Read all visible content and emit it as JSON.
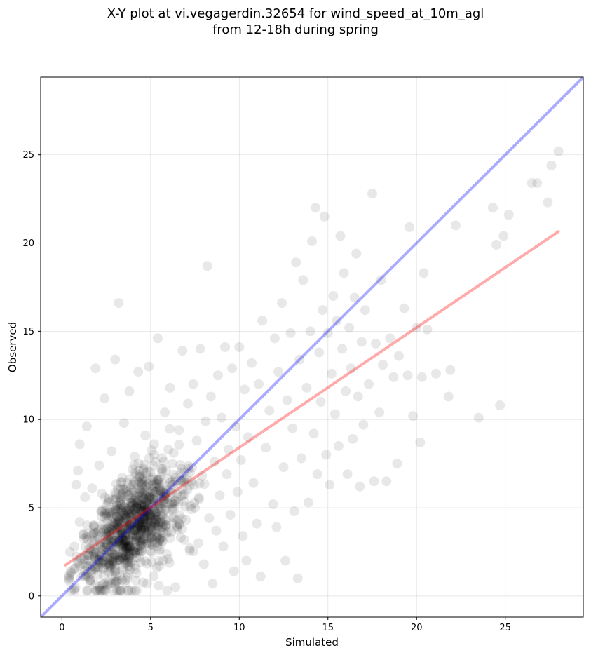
{
  "chart_data": {
    "type": "scatter",
    "title_line1": "X-Y plot at vi.vegagerdin.32654 for wind_speed_at_10m_agl",
    "title_line2": "from 12-18h during spring",
    "xlabel": "Simulated",
    "ylabel": "Observed",
    "xlim": [
      -1.2,
      29.4
    ],
    "ylim": [
      -1.2,
      29.4
    ],
    "xticks": [
      0,
      5,
      10,
      15,
      20,
      25
    ],
    "yticks": [
      0,
      5,
      10,
      15,
      20,
      25
    ],
    "grid": true,
    "reference_line": {
      "slope": 1,
      "intercept": 0,
      "color": "#0000ff",
      "opacity": 0.33
    },
    "fit_line": {
      "x": [
        0.2,
        28.0
      ],
      "y": [
        1.75,
        20.65
      ],
      "color": "#ff0000",
      "opacity": 0.33
    },
    "point_color": "#000000",
    "point_opacity": 0.09,
    "series": [
      {
        "points": [
          [
            0.5,
            1.4
          ],
          [
            0.7,
            2.8
          ],
          [
            0.8,
            6.3
          ],
          [
            0.9,
            7.1
          ],
          [
            1.0,
            4.2
          ],
          [
            1.0,
            8.6
          ],
          [
            1.1,
            1.1
          ],
          [
            1.2,
            3.5
          ],
          [
            1.3,
            5.6
          ],
          [
            1.4,
            9.6
          ],
          [
            1.5,
            2.3
          ],
          [
            1.6,
            0.8
          ],
          [
            1.7,
            6.1
          ],
          [
            1.8,
            3.9
          ],
          [
            1.9,
            12.9
          ],
          [
            2.0,
            1.6
          ],
          [
            2.1,
            7.4
          ],
          [
            2.2,
            4.8
          ],
          [
            2.3,
            2.6
          ],
          [
            2.4,
            11.2
          ],
          [
            2.5,
            0.6
          ],
          [
            2.6,
            5.3
          ],
          [
            2.7,
            3.1
          ],
          [
            2.8,
            8.2
          ],
          [
            2.9,
            1.9
          ],
          [
            3.0,
            13.4
          ],
          [
            3.1,
            4.5
          ],
          [
            3.2,
            16.6
          ],
          [
            3.3,
            2.2
          ],
          [
            3.4,
            6.7
          ],
          [
            3.5,
            9.8
          ],
          [
            3.6,
            0.9
          ],
          [
            3.7,
            3.8
          ],
          [
            3.8,
            11.6
          ],
          [
            3.9,
            5.1
          ],
          [
            4.0,
            2.4
          ],
          [
            4.1,
            7.9
          ],
          [
            4.2,
            1.3
          ],
          [
            4.3,
            12.7
          ],
          [
            4.4,
            4.0
          ],
          [
            4.5,
            6.2
          ],
          [
            4.6,
            3.2
          ],
          [
            4.7,
            9.1
          ],
          [
            4.8,
            0.7
          ],
          [
            4.9,
            13.0
          ],
          [
            5.0,
            5.5
          ],
          [
            5.1,
            2.9
          ],
          [
            5.2,
            8.6
          ],
          [
            5.3,
            4.7
          ],
          [
            5.4,
            14.6
          ],
          [
            5.5,
            1.7
          ],
          [
            5.6,
            7.2
          ],
          [
            5.7,
            3.6
          ],
          [
            5.8,
            10.4
          ],
          [
            5.9,
            6.0
          ],
          [
            6.0,
            2.1
          ],
          [
            6.1,
            11.8
          ],
          [
            6.2,
            4.9
          ],
          [
            6.3,
            8.1
          ],
          [
            6.4,
            0.5
          ],
          [
            6.5,
            5.8
          ],
          [
            6.6,
            9.4
          ],
          [
            6.7,
            3.3
          ],
          [
            6.8,
            13.9
          ],
          [
            6.9,
            7.0
          ],
          [
            7.0,
            4.3
          ],
          [
            7.1,
            10.9
          ],
          [
            7.2,
            2.7
          ],
          [
            7.3,
            6.5
          ],
          [
            7.4,
            12.0
          ],
          [
            7.5,
            5.0
          ],
          [
            7.6,
            8.8
          ],
          [
            7.7,
            3.0
          ],
          [
            7.8,
            14.0
          ],
          [
            7.9,
            6.8
          ],
          [
            8.0,
            1.8
          ],
          [
            8.1,
            9.9
          ],
          [
            8.2,
            18.7
          ],
          [
            8.3,
            4.4
          ],
          [
            8.4,
            11.3
          ],
          [
            8.5,
            0.7
          ],
          [
            8.6,
            7.6
          ],
          [
            8.7,
            3.7
          ],
          [
            8.8,
            12.5
          ],
          [
            8.9,
            5.7
          ],
          [
            9.0,
            10.1
          ],
          [
            9.1,
            2.8
          ],
          [
            9.2,
            14.1
          ],
          [
            9.3,
            6.9
          ],
          [
            9.4,
            8.3
          ],
          [
            9.5,
            4.6
          ],
          [
            9.6,
            12.9
          ],
          [
            9.7,
            1.4
          ],
          [
            9.8,
            9.6
          ],
          [
            9.9,
            5.9
          ],
          [
            10.0,
            14.1
          ],
          [
            10.1,
            7.7
          ],
          [
            10.2,
            3.4
          ],
          [
            10.3,
            11.7
          ],
          [
            10.4,
            2.0
          ],
          [
            10.5,
            9.0
          ],
          [
            10.7,
            13.2
          ],
          [
            10.8,
            6.4
          ],
          [
            11.0,
            4.1
          ],
          [
            11.1,
            12.0
          ],
          [
            11.2,
            1.1
          ],
          [
            11.3,
            15.6
          ],
          [
            11.5,
            8.4
          ],
          [
            11.7,
            10.5
          ],
          [
            11.9,
            5.2
          ],
          [
            12.0,
            14.6
          ],
          [
            12.1,
            3.9
          ],
          [
            12.2,
            12.7
          ],
          [
            12.4,
            16.6
          ],
          [
            12.5,
            7.3
          ],
          [
            12.6,
            2.0
          ],
          [
            12.7,
            11.1
          ],
          [
            12.9,
            14.9
          ],
          [
            13.0,
            9.5
          ],
          [
            13.1,
            4.8
          ],
          [
            13.2,
            18.9
          ],
          [
            13.3,
            1.0
          ],
          [
            13.4,
            13.4
          ],
          [
            13.5,
            7.8
          ],
          [
            13.6,
            17.9
          ],
          [
            13.8,
            11.8
          ],
          [
            13.9,
            5.3
          ],
          [
            14.0,
            15.0
          ],
          [
            14.1,
            20.1
          ],
          [
            14.2,
            9.2
          ],
          [
            14.3,
            22.0
          ],
          [
            14.4,
            6.9
          ],
          [
            14.5,
            13.8
          ],
          [
            14.6,
            11.0
          ],
          [
            14.7,
            16.2
          ],
          [
            14.8,
            21.5
          ],
          [
            14.9,
            8.0
          ],
          [
            15.0,
            14.9
          ],
          [
            15.1,
            6.3
          ],
          [
            15.2,
            12.6
          ],
          [
            15.3,
            17.0
          ],
          [
            15.4,
            10.3
          ],
          [
            15.5,
            15.6
          ],
          [
            15.6,
            8.5
          ],
          [
            15.7,
            20.4
          ],
          [
            15.8,
            14.0
          ],
          [
            15.9,
            18.3
          ],
          [
            16.0,
            11.6
          ],
          [
            16.1,
            6.9
          ],
          [
            16.2,
            15.2
          ],
          [
            16.3,
            12.9
          ],
          [
            16.4,
            8.9
          ],
          [
            16.5,
            16.9
          ],
          [
            16.6,
            19.4
          ],
          [
            16.7,
            11.3
          ],
          [
            16.8,
            6.2
          ],
          [
            16.9,
            14.4
          ],
          [
            17.0,
            9.7
          ],
          [
            17.1,
            16.2
          ],
          [
            17.3,
            12.0
          ],
          [
            17.5,
            22.8
          ],
          [
            17.6,
            6.5
          ],
          [
            17.7,
            14.3
          ],
          [
            17.9,
            10.4
          ],
          [
            18.0,
            17.9
          ],
          [
            18.1,
            13.1
          ],
          [
            18.3,
            6.5
          ],
          [
            18.5,
            14.6
          ],
          [
            18.7,
            12.4
          ],
          [
            18.9,
            7.5
          ],
          [
            19.0,
            13.6
          ],
          [
            19.3,
            16.3
          ],
          [
            19.5,
            12.5
          ],
          [
            19.6,
            20.9
          ],
          [
            19.8,
            10.2
          ],
          [
            20.0,
            15.2
          ],
          [
            20.2,
            8.7
          ],
          [
            20.3,
            12.4
          ],
          [
            20.4,
            18.3
          ],
          [
            20.6,
            15.1
          ],
          [
            21.1,
            12.6
          ],
          [
            21.8,
            11.3
          ],
          [
            21.9,
            12.8
          ],
          [
            22.2,
            21.0
          ],
          [
            23.5,
            10.1
          ],
          [
            24.3,
            22.0
          ],
          [
            24.5,
            19.9
          ],
          [
            24.7,
            10.8
          ],
          [
            24.9,
            20.4
          ],
          [
            25.2,
            21.6
          ],
          [
            26.5,
            23.4
          ],
          [
            26.8,
            23.4
          ],
          [
            27.4,
            22.3
          ],
          [
            27.6,
            24.4
          ],
          [
            28.0,
            25.2
          ]
        ]
      }
    ]
  }
}
